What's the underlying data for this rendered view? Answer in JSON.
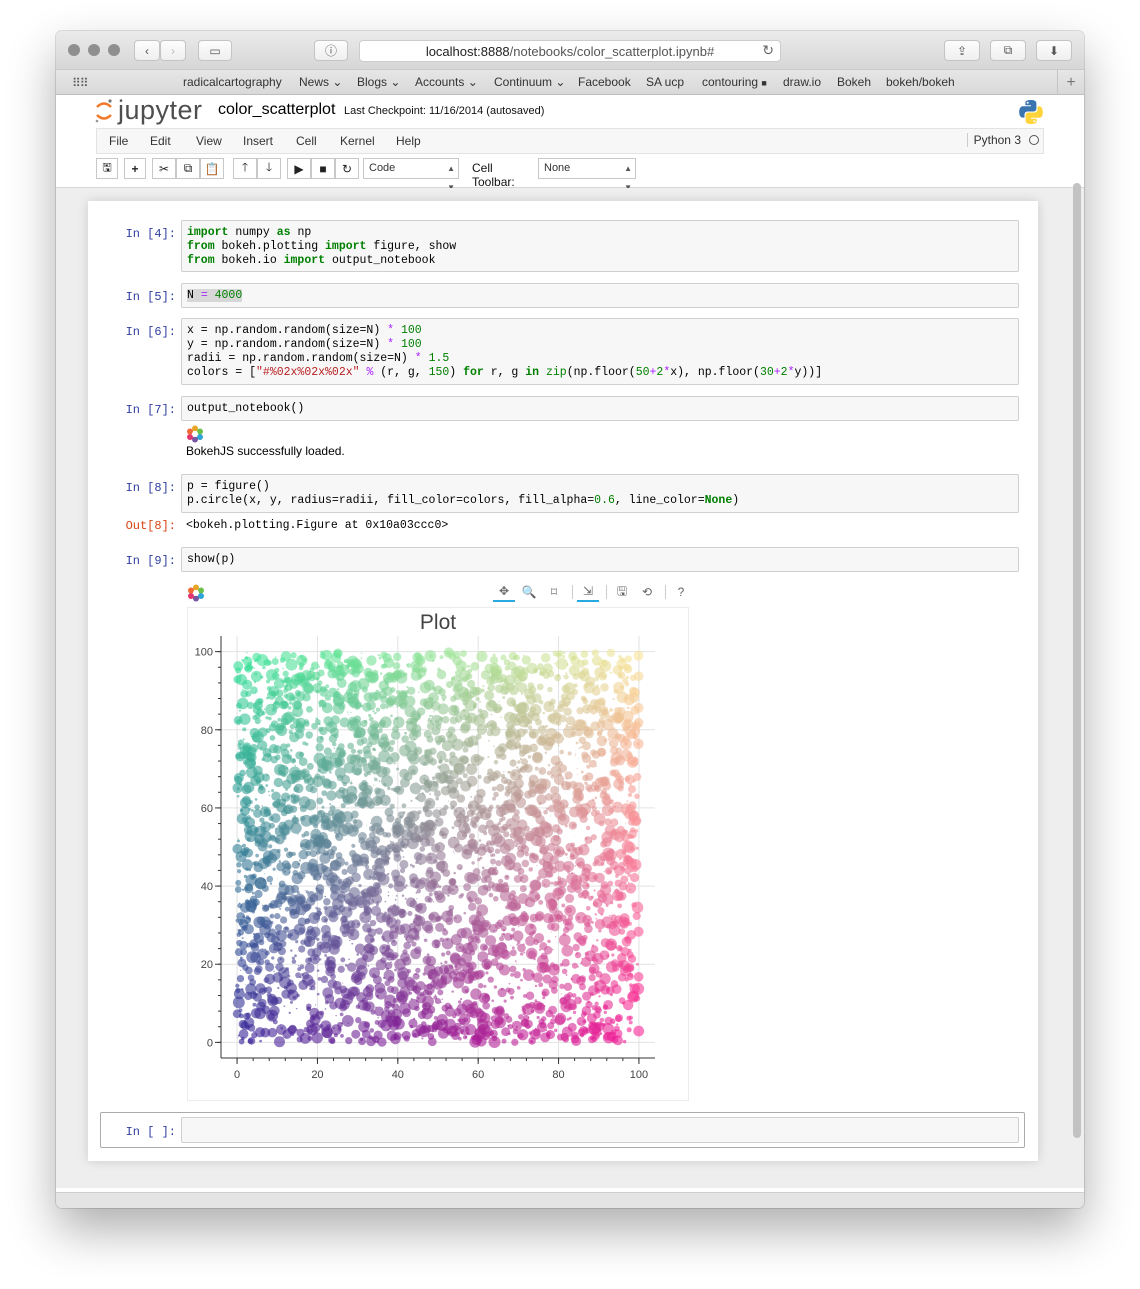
{
  "browser": {
    "url_host": "localhost:8888",
    "url_path": "/notebooks/color_scatterplot.ipynb#",
    "bookmarks": [
      {
        "label": "radicalcartography",
        "dropdown": false
      },
      {
        "label": "News",
        "dropdown": true
      },
      {
        "label": "Blogs",
        "dropdown": true
      },
      {
        "label": "Accounts",
        "dropdown": true
      },
      {
        "label": "Continuum",
        "dropdown": true
      },
      {
        "label": "Facebook",
        "dropdown": false
      },
      {
        "label": "SA ucp",
        "dropdown": false
      },
      {
        "label": "contouring",
        "dropdown": false
      },
      {
        "label": "draw.io",
        "dropdown": false
      },
      {
        "label": "Bokeh",
        "dropdown": false
      },
      {
        "label": "bokeh/bokeh",
        "dropdown": false
      }
    ]
  },
  "jupyter": {
    "logo_text": "jupyter",
    "notebook_name": "color_scatterplot",
    "checkpoint": "Last Checkpoint: 11/16/2014 (autosaved)",
    "menu": [
      "File",
      "Edit",
      "View",
      "Insert",
      "Cell",
      "Kernel",
      "Help"
    ],
    "kernel": "Python 3",
    "cell_type": "Code",
    "cell_toolbar_label": "Cell Toolbar:",
    "cell_toolbar_value": "None"
  },
  "cells": {
    "c4": {
      "prompt": "In [4]:"
    },
    "c5": {
      "prompt": "In [5]:"
    },
    "c6": {
      "prompt": "In [6]:"
    },
    "c7": {
      "prompt": "In [7]:",
      "output": "BokehJS successfully loaded."
    },
    "c8": {
      "prompt": "In [8]:",
      "out_prompt": "Out[8]:",
      "output": "<bokeh.plotting.Figure at 0x10a03ccc0>"
    },
    "c9": {
      "prompt": "In [9]:",
      "code": "show(p)"
    },
    "empty": {
      "prompt": "In [ ]:"
    }
  },
  "chart_data": {
    "type": "scatter",
    "title": "Plot",
    "xlabel": "",
    "ylabel": "",
    "xlim": [
      -4,
      104
    ],
    "ylim": [
      -4,
      104
    ],
    "x_ticks": [
      0,
      20,
      40,
      60,
      80,
      100
    ],
    "y_ticks": [
      0,
      20,
      40,
      60,
      80,
      100
    ],
    "grid": true,
    "n_points": 4000,
    "x_range": [
      0,
      100
    ],
    "y_range": [
      0,
      100
    ],
    "radius_range": [
      0,
      1.5
    ],
    "fill_alpha": 0.6,
    "color_rule": "rgb(floor(50+2*x), floor(30+2*y), 150)",
    "corner_colors": {
      "bottom_left": "#321e96",
      "bottom_right": "#fa1e96",
      "top_left": "#32e696",
      "top_right": "#fae696"
    }
  }
}
